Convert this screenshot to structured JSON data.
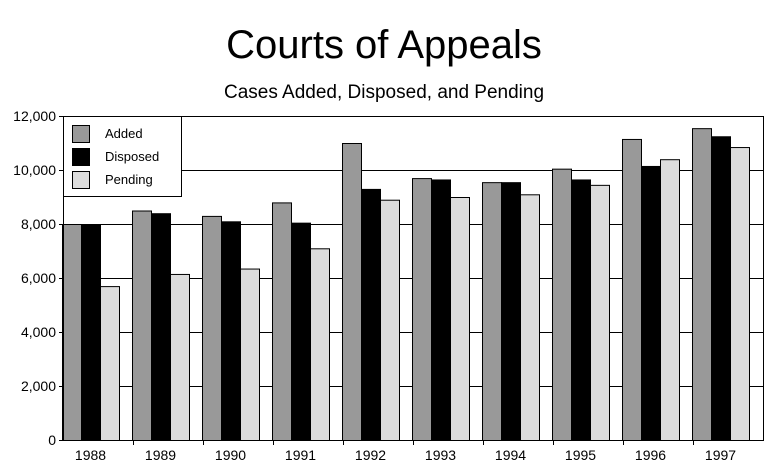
{
  "chart_data": {
    "type": "bar",
    "title": "Courts of Appeals",
    "subtitle": "Cases Added, Disposed, and Pending",
    "xlabel": "",
    "ylabel": "",
    "ylim": [
      0,
      12000
    ],
    "yticks": [
      0,
      2000,
      4000,
      6000,
      8000,
      10000,
      12000
    ],
    "ytick_labels": [
      "0",
      "2,000",
      "4,000",
      "6,000",
      "8,000",
      "10,000",
      "12,000"
    ],
    "grid": true,
    "legend_position": "top-left",
    "categories": [
      "1988",
      "1989",
      "1990",
      "1991",
      "1992",
      "1993",
      "1994",
      "1995",
      "1996",
      "1997"
    ],
    "series": [
      {
        "name": "Added",
        "color": "#999999",
        "values": [
          8000,
          8500,
          8300,
          8800,
          11000,
          9700,
          9550,
          10050,
          11150,
          11550
        ]
      },
      {
        "name": "Disposed",
        "color": "#000000",
        "values": [
          8000,
          8400,
          8100,
          8050,
          9300,
          9650,
          9550,
          9650,
          10150,
          11250
        ]
      },
      {
        "name": "Pending",
        "color": "#dddddd",
        "values": [
          5700,
          6150,
          6350,
          7100,
          8900,
          9000,
          9100,
          9450,
          10400,
          10850
        ]
      }
    ]
  }
}
